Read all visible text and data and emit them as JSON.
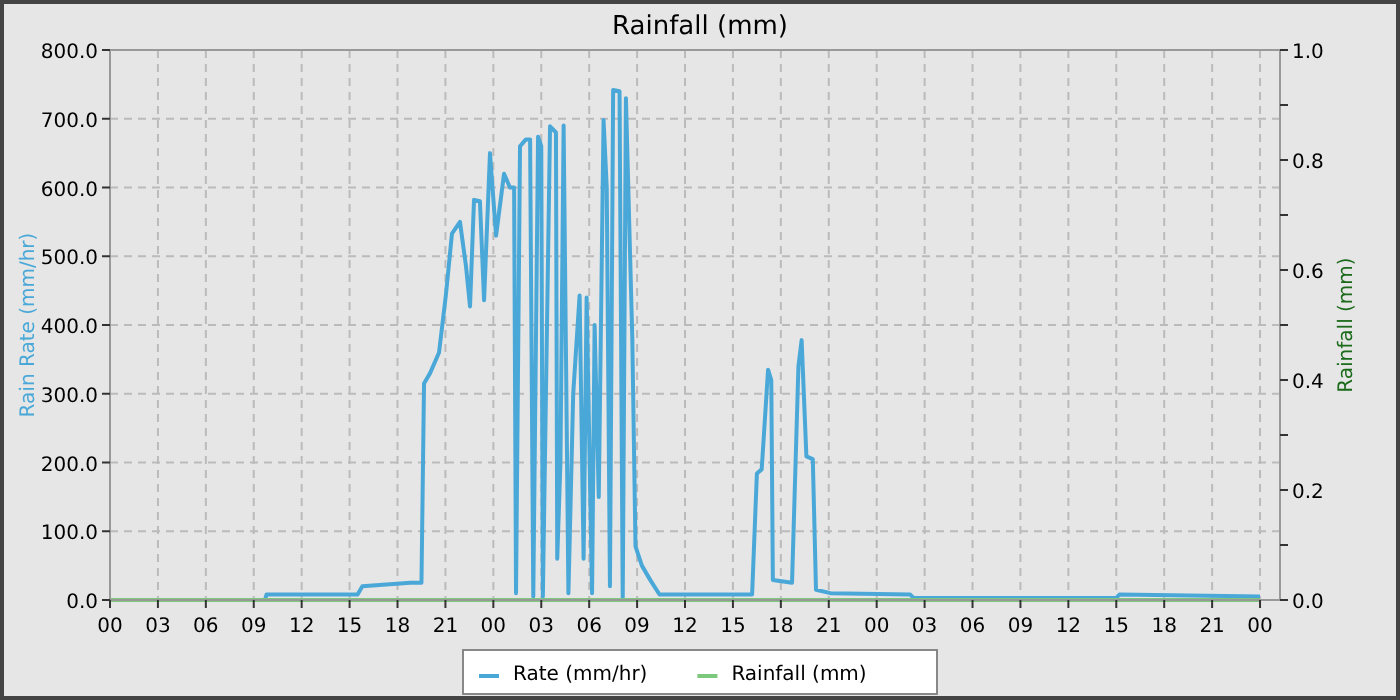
{
  "chart_data": {
    "type": "line",
    "title": "Rainfall (mm)",
    "ylabel": "Rain Rate (mm/hr)",
    "y2label": "Rainfall (mm)",
    "xlim": [
      0,
      73.25
    ],
    "xticks": [
      {
        "value": 0,
        "label": "00"
      },
      {
        "value": 3,
        "label": "03"
      },
      {
        "value": 6,
        "label": "06"
      },
      {
        "value": 9,
        "label": "09"
      },
      {
        "value": 12,
        "label": "12"
      },
      {
        "value": 15,
        "label": "15"
      },
      {
        "value": 18,
        "label": "18"
      },
      {
        "value": 21,
        "label": "21"
      },
      {
        "value": 24,
        "label": "00"
      },
      {
        "value": 27,
        "label": "03"
      },
      {
        "value": 30,
        "label": "06"
      },
      {
        "value": 33,
        "label": "09"
      },
      {
        "value": 36,
        "label": "12"
      },
      {
        "value": 39,
        "label": "15"
      },
      {
        "value": 42,
        "label": "18"
      },
      {
        "value": 45,
        "label": "21"
      },
      {
        "value": 48,
        "label": "00"
      },
      {
        "value": 51,
        "label": "03"
      },
      {
        "value": 54,
        "label": "06"
      },
      {
        "value": 57,
        "label": "09"
      },
      {
        "value": 60,
        "label": "12"
      },
      {
        "value": 63,
        "label": "15"
      },
      {
        "value": 66,
        "label": "18"
      },
      {
        "value": 69,
        "label": "21"
      },
      {
        "value": 72,
        "label": "00"
      }
    ],
    "ylim": [
      0,
      800
    ],
    "yticks": [
      {
        "value": 0,
        "label": "0.0"
      },
      {
        "value": 100,
        "label": "100.0"
      },
      {
        "value": 200,
        "label": "200.0"
      },
      {
        "value": 300,
        "label": "300.0"
      },
      {
        "value": 400,
        "label": "400.0"
      },
      {
        "value": 500,
        "label": "500.0"
      },
      {
        "value": 600,
        "label": "600.0"
      },
      {
        "value": 700,
        "label": "700.0"
      },
      {
        "value": 800,
        "label": "800.0"
      }
    ],
    "y2lim": [
      0,
      1
    ],
    "y2ticks": [
      {
        "value": 0,
        "label": "0.0"
      },
      {
        "value": 0.1,
        "label": null
      },
      {
        "value": 0.2,
        "label": "0.2"
      },
      {
        "value": 0.3,
        "label": null
      },
      {
        "value": 0.4,
        "label": "0.4"
      },
      {
        "value": 0.5,
        "label": null
      },
      {
        "value": 0.6,
        "label": "0.6"
      },
      {
        "value": 0.7,
        "label": null
      },
      {
        "value": 0.8,
        "label": "0.8"
      },
      {
        "value": 0.9,
        "label": null
      },
      {
        "value": 1,
        "label": "1.0"
      }
    ],
    "grid": true,
    "legend": "bottom",
    "series": [
      {
        "name": "Rate (mm/hr)",
        "color": "#4aa8d8",
        "x": [
          0,
          9.7,
          9.8,
          15.5,
          15.8,
          18.8,
          19.5,
          19.66,
          20.04,
          20.6,
          21.04,
          21.41,
          21.91,
          22.29,
          22.54,
          22.79,
          23.16,
          23.42,
          23.79,
          24.17,
          24.67,
          25.04,
          25.3,
          25.42,
          25.67,
          26.04,
          26.3,
          26.5,
          26.8,
          27.0,
          27.1,
          27.55,
          27.92,
          28.0,
          28.2,
          28.4,
          28.7,
          29.0,
          29.4,
          29.65,
          29.84,
          30.18,
          30.34,
          30.6,
          30.9,
          31.1,
          31.3,
          31.5,
          31.9,
          32.1,
          32.3,
          32.7,
          32.9,
          33.3,
          33.8,
          34.4,
          40.2,
          40.5,
          40.8,
          41.2,
          41.4,
          41.5,
          42.7,
          43.1,
          43.3,
          43.6,
          44.0,
          44.2,
          45.1,
          50.1,
          50.3,
          63.0,
          63.2,
          72
        ],
        "values": [
          0,
          0,
          8,
          8,
          20,
          25,
          25,
          315,
          330,
          360,
          446,
          533,
          550,
          485,
          427,
          582,
          580,
          436,
          650,
          530,
          620,
          600,
          600,
          10,
          660,
          670,
          670,
          5,
          674,
          660,
          5,
          689,
          680,
          60,
          200,
          690,
          10,
          300,
          443,
          60,
          440,
          10,
          400,
          150,
          698,
          600,
          20,
          742,
          740,
          0,
          730,
          380,
          78,
          50,
          30,
          8,
          8,
          184,
          190,
          335,
          320,
          29,
          25,
          340,
          378,
          209,
          205,
          15,
          10,
          8,
          3,
          3,
          8,
          5
        ]
      },
      {
        "name": "Rainfall (mm)",
        "color": "#7cc87c",
        "x": [
          0,
          72
        ],
        "values": [
          0,
          0
        ]
      }
    ]
  }
}
